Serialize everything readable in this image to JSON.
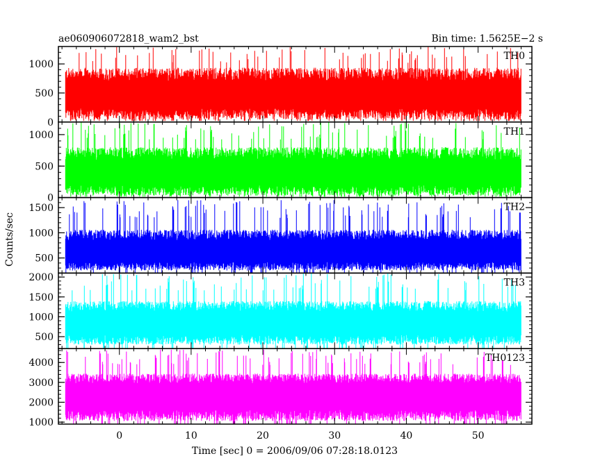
{
  "header": {
    "title": "ae060906072818_wam2_bst",
    "bin_time": "Bin time: 1.5625E−2 s"
  },
  "axes": {
    "ylabel": "Counts/sec",
    "xlabel": "Time [sec] 0 = 2006/09/06 07:28:18.0123"
  },
  "chart_data": {
    "type": "line",
    "x_range": [
      -8.5,
      57.5
    ],
    "data_x_range": [
      -7.5,
      56.0
    ],
    "x_ticks": [
      0,
      10,
      20,
      30,
      40,
      50
    ],
    "x_minor_step": 2,
    "panels": [
      {
        "name": "TH0",
        "color": "#ff0000",
        "ylim": [
          0,
          1300
        ],
        "y_ticks": [
          0,
          500,
          1000
        ],
        "y_minor_step": 100,
        "baseline": 600,
        "spread": 280,
        "peak_max": 1300,
        "floor": 40
      },
      {
        "name": "TH1",
        "color": "#00ff00",
        "ylim": [
          0,
          1200
        ],
        "y_ticks": [
          0,
          500,
          1000
        ],
        "y_minor_step": 100,
        "baseline": 500,
        "spread": 250,
        "peak_max": 1200,
        "floor": 30
      },
      {
        "name": "TH2",
        "color": "#0000ff",
        "ylim": [
          200,
          1700
        ],
        "y_ticks": [
          500,
          1000,
          1500
        ],
        "y_minor_step": 100,
        "baseline": 750,
        "spread": 260,
        "peak_max": 1650,
        "floor": 250
      },
      {
        "name": "TH3",
        "color": "#00ffff",
        "ylim": [
          200,
          2100
        ],
        "y_ticks": [
          500,
          1000,
          1500,
          2000
        ],
        "y_minor_step": 100,
        "baseline": 1000,
        "spread": 330,
        "peak_max": 2100,
        "floor": 300
      },
      {
        "name": "TH0123",
        "color": "#ff00ff",
        "ylim": [
          900,
          4700
        ],
        "y_ticks": [
          1000,
          2000,
          3000,
          4000
        ],
        "y_minor_step": 200,
        "baseline": 2700,
        "spread": 620,
        "peak_max": 4650,
        "floor": 1050
      }
    ]
  }
}
